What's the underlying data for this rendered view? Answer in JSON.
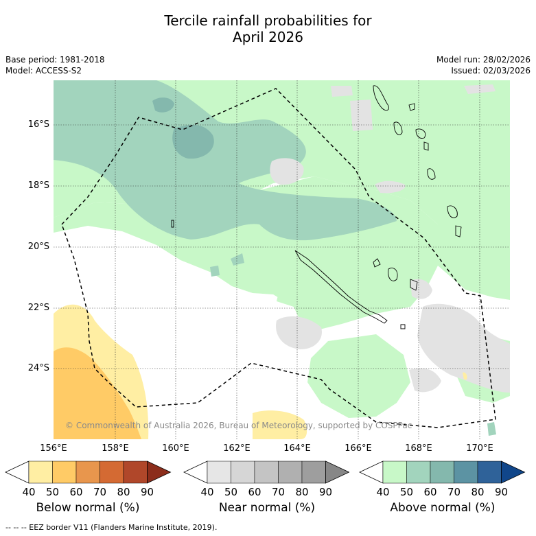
{
  "title_line1": "Tercile rainfall probabilities for",
  "title_line2": "April 2026",
  "base_period": "Base period: 1981-2018",
  "model": "Model: ACCESS-S2",
  "model_run": "Model run: 28/02/2026",
  "issued": "Issued: 02/03/2026",
  "lat_labels": [
    "16°S",
    "18°S",
    "20°S",
    "22°S",
    "24°S"
  ],
  "lon_labels": [
    "156°E",
    "158°E",
    "160°E",
    "162°E",
    "164°E",
    "166°E",
    "168°E",
    "170°E"
  ],
  "credit": "© Commonwealth of Australia 2026, Bureau of Meteorology, supported by COSPPac",
  "footnote": "-- -- -- EEZ border V11 (Flanders Marine Institute, 2019).",
  "colorbars": [
    {
      "name": "Below normal (%)",
      "ticks": [
        "40",
        "50",
        "60",
        "70",
        "80",
        "90"
      ],
      "colors": [
        "#ffffff",
        "#ffeea3",
        "#ffcb66",
        "#e8964d",
        "#d46a33",
        "#b0472a",
        "#8c2d1b"
      ]
    },
    {
      "name": "Near normal (%)",
      "ticks": [
        "40",
        "50",
        "60",
        "70",
        "80",
        "90"
      ],
      "colors": [
        "#ffffff",
        "#e6e6e6",
        "#d6d6d6",
        "#c4c4c4",
        "#b0b0b0",
        "#9e9e9e",
        "#878787"
      ]
    },
    {
      "name": "Above normal (%)",
      "ticks": [
        "40",
        "50",
        "60",
        "70",
        "80",
        "90"
      ],
      "colors": [
        "#ffffff",
        "#c8f8c8",
        "#a2d4bd",
        "#84b8ad",
        "#5c93a3",
        "#2f6299",
        "#10468a"
      ]
    }
  ]
}
